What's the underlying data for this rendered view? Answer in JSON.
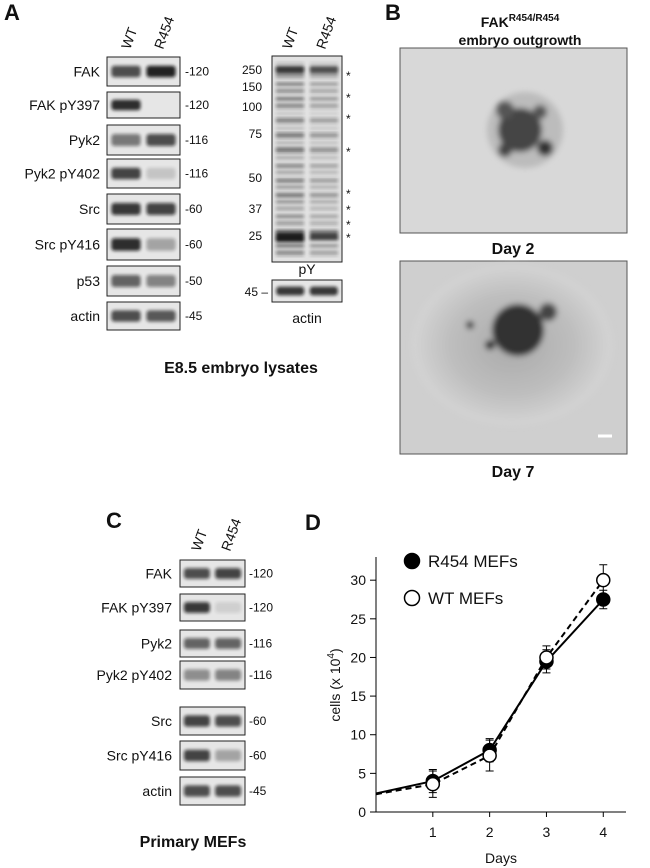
{
  "figure": {
    "A": {
      "label": "A",
      "lanes": [
        "WT",
        "R454"
      ],
      "blots": [
        {
          "name": "FAK",
          "mw": "-120"
        },
        {
          "name": "FAK pY397",
          "mw": "-120"
        },
        {
          "name": "Pyk2",
          "mw": "-116"
        },
        {
          "name": "Pyk2 pY402",
          "mw": "-116"
        },
        {
          "name": "Src",
          "mw": "-60"
        },
        {
          "name": "Src pY416",
          "mw": "-60"
        },
        {
          "name": "p53",
          "mw": "-50"
        },
        {
          "name": "actin",
          "mw": "-45"
        }
      ],
      "py_lanes": [
        "WT",
        "R454"
      ],
      "py_markers": [
        "250",
        "150",
        "100",
        "75",
        "50",
        "37",
        "25"
      ],
      "asterisks": [
        "*",
        "*",
        "*",
        "*",
        "*",
        "*",
        "*",
        "*"
      ],
      "py_label": "pY",
      "actin_marker": "45 –",
      "actin_label": "actin",
      "caption": "E8.5 embryo lysates"
    },
    "B": {
      "label": "B",
      "title": "FAK",
      "title_sup": "R454/R454",
      "subtitle": "embryo outgrowth",
      "days": [
        "Day 2",
        "Day 7"
      ]
    },
    "C": {
      "label": "C",
      "lanes": [
        "WT",
        "R454"
      ],
      "blots": [
        {
          "name": "FAK",
          "mw": "-120"
        },
        {
          "name": "FAK pY397",
          "mw": "-120"
        },
        {
          "name": "Pyk2",
          "mw": "-116"
        },
        {
          "name": "Pyk2 pY402",
          "mw": "-116"
        },
        {
          "name": "Src",
          "mw": "-60"
        },
        {
          "name": "Src pY416",
          "mw": "-60"
        },
        {
          "name": "actin",
          "mw": "-45"
        }
      ],
      "caption": "Primary MEFs"
    }
  },
  "chart_data": {
    "type": "line",
    "panel_label": "D",
    "x": [
      0,
      1,
      2,
      3,
      4
    ],
    "series": [
      {
        "name": "R454 MEFs",
        "color": "#000000",
        "marker": "filled",
        "line": "solid",
        "values": [
          2.4,
          4,
          8,
          19.5,
          27.5
        ],
        "errors": [
          null,
          1.5,
          1.5,
          1.5,
          1.2
        ]
      },
      {
        "name": "WT MEFs",
        "color": "#000000",
        "marker": "open",
        "line": "dashed",
        "values": [
          2.3,
          3.6,
          7.3,
          20,
          30
        ],
        "errors": [
          null,
          1.7,
          2,
          1.5,
          2
        ]
      }
    ],
    "xlim": [
      0,
      4.4
    ],
    "ylim": [
      0,
      33
    ],
    "xticks": [
      1,
      2,
      3,
      4
    ],
    "yticks": [
      0,
      5,
      10,
      15,
      20,
      25,
      30
    ],
    "xlabel": "Days",
    "ylabel": "cells (x 10",
    "ylabel_sup": "4",
    "ylabel_end": ")",
    "legend": "upper left"
  }
}
